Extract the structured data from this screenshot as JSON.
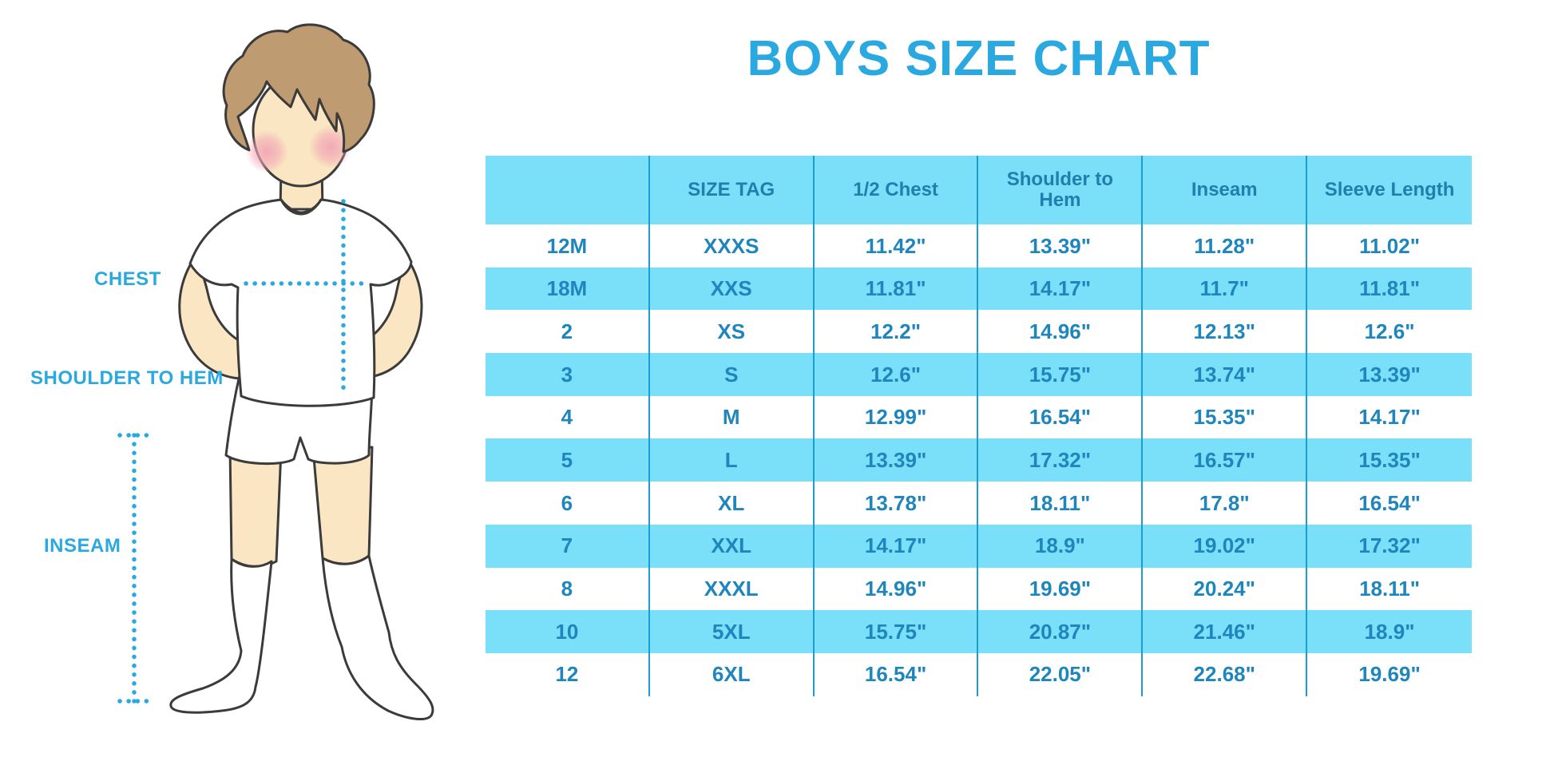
{
  "title": "BOYS SIZE CHART",
  "colors": {
    "accent": "#2AA9E0",
    "stripe": "#7ADFF8",
    "line": "#1D9CD2",
    "header-text": "#1F7FAD",
    "cell-text": "#1E86BC",
    "skin": "#FAE6C2",
    "hair": "#BE9B70",
    "cheek": "#F2A6B6",
    "outline": "#3B3B3B"
  },
  "figure": {
    "chest_label": "CHEST",
    "shoulder_to_hem_label": "SHOULDER TO HEM",
    "inseam_label": "INSEAM"
  },
  "chart_data": {
    "type": "table",
    "title": "BOYS SIZE CHART",
    "columns": [
      "",
      "SIZE TAG",
      "1/2 Chest",
      "Shoulder to Hem",
      "Inseam",
      "Sleeve Length"
    ],
    "rows": [
      [
        "12M",
        "XXXS",
        "11.42\"",
        "13.39\"",
        "11.28\"",
        "11.02\""
      ],
      [
        "18M",
        "XXS",
        "11.81\"",
        "14.17\"",
        "11.7\"",
        "11.81\""
      ],
      [
        "2",
        "XS",
        "12.2\"",
        "14.96\"",
        "12.13\"",
        "12.6\""
      ],
      [
        "3",
        "S",
        "12.6\"",
        "15.75\"",
        "13.74\"",
        "13.39\""
      ],
      [
        "4",
        "M",
        "12.99\"",
        "16.54\"",
        "15.35\"",
        "14.17\""
      ],
      [
        "5",
        "L",
        "13.39\"",
        "17.32\"",
        "16.57\"",
        "15.35\""
      ],
      [
        "6",
        "XL",
        "13.78\"",
        "18.11\"",
        "17.8\"",
        "16.54\""
      ],
      [
        "7",
        "XXL",
        "14.17\"",
        "18.9\"",
        "19.02\"",
        "17.32\""
      ],
      [
        "8",
        "XXXL",
        "14.96\"",
        "19.69\"",
        "20.24\"",
        "18.11\""
      ],
      [
        "10",
        "5XL",
        "15.75\"",
        "20.87\"",
        "21.46\"",
        "18.9\""
      ],
      [
        "12",
        "6XL",
        "16.54\"",
        "22.05\"",
        "22.68\"",
        "19.69\""
      ]
    ]
  }
}
